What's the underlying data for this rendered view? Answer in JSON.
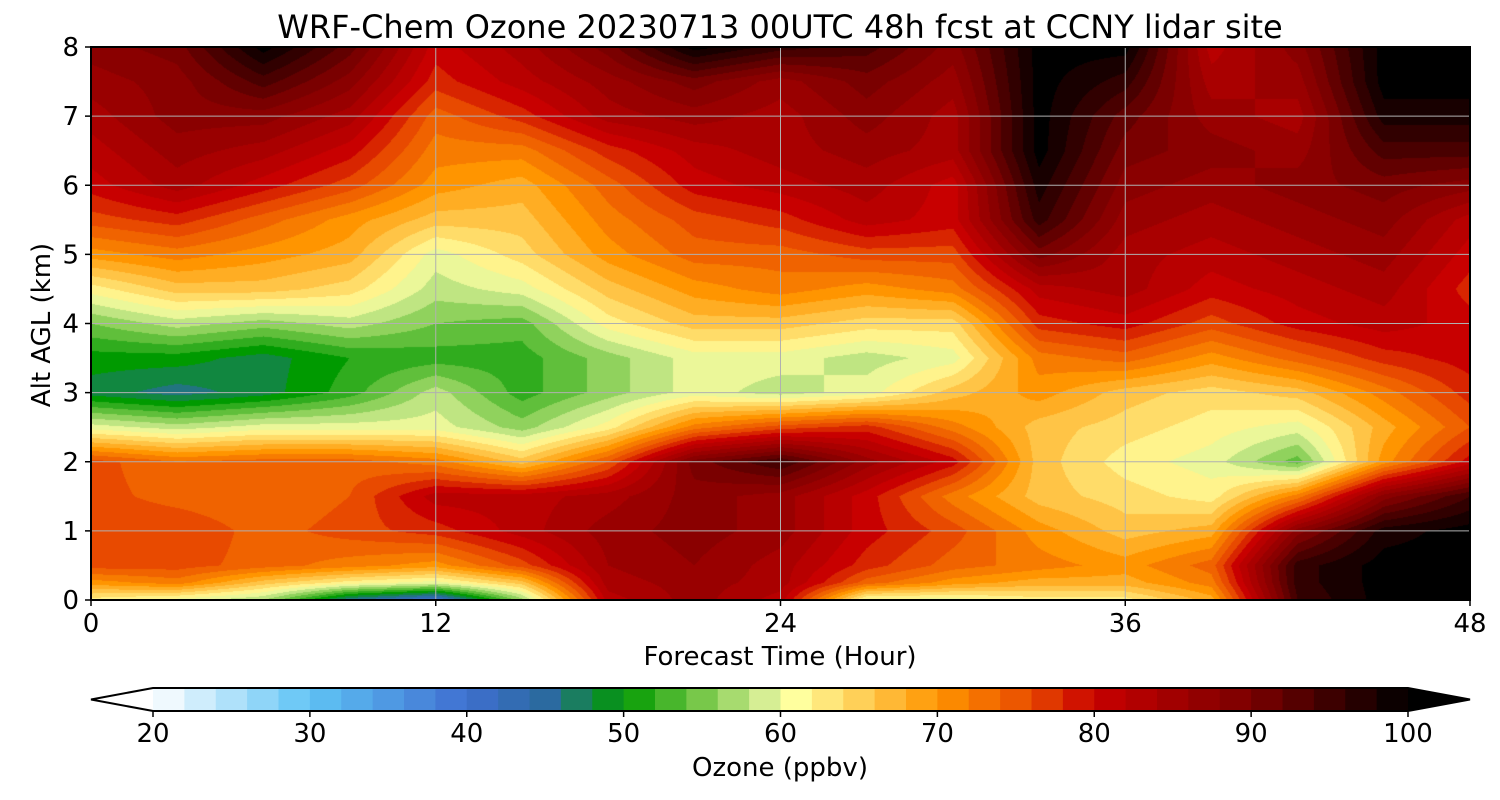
{
  "chart_data": {
    "type": "heatmap",
    "title": "WRF-Chem Ozone  20230713 00UTC 48h fcst at CCNY lidar site",
    "xlabel": "Forecast Time (Hour)",
    "ylabel": "Alt AGL (km)",
    "xlim": [
      0,
      48
    ],
    "ylim": [
      0,
      8
    ],
    "x_ticks": [
      0,
      12,
      24,
      36,
      48
    ],
    "y_ticks": [
      0,
      1,
      2,
      3,
      4,
      5,
      6,
      7,
      8
    ],
    "grid": true,
    "x": [
      0,
      3,
      6,
      9,
      12,
      15,
      18,
      21,
      24,
      27,
      30,
      33,
      36,
      39,
      42,
      45,
      48
    ],
    "y": [
      0,
      0.25,
      0.5,
      1,
      1.5,
      2,
      2.5,
      3,
      3.5,
      4,
      4.5,
      5,
      5.5,
      6,
      6.5,
      7,
      7.5,
      8
    ],
    "z": [
      [
        62,
        60,
        57,
        45,
        40,
        56,
        82,
        86,
        82,
        60,
        60,
        62,
        62,
        68,
        95,
        100,
        100
      ],
      [
        70,
        72,
        66,
        62,
        60,
        66,
        84,
        86,
        84,
        74,
        70,
        68,
        68,
        72,
        96,
        100,
        100
      ],
      [
        76,
        76,
        74,
        72,
        70,
        76,
        85,
        87,
        84,
        78,
        74,
        72,
        70,
        74,
        96,
        100,
        100
      ],
      [
        77,
        77,
        74,
        76,
        78,
        82,
        86,
        88,
        86,
        80,
        76,
        70,
        66,
        68,
        88,
        98,
        100
      ],
      [
        76,
        74,
        73,
        75,
        82,
        82,
        84,
        88,
        86,
        80,
        72,
        66,
        64,
        62,
        72,
        88,
        95
      ],
      [
        76,
        73,
        74,
        74,
        72,
        66,
        75,
        90,
        95,
        86,
        80,
        66,
        62,
        60,
        54,
        70,
        80
      ],
      [
        60,
        58,
        60,
        60,
        60,
        56,
        62,
        72,
        76,
        78,
        72,
        66,
        64,
        62,
        60,
        68,
        75
      ],
      [
        48,
        46,
        48,
        52,
        58,
        52,
        56,
        60,
        58,
        60,
        66,
        70,
        66,
        64,
        66,
        72,
        78
      ],
      [
        50,
        50,
        48,
        51,
        52,
        52,
        56,
        60,
        60,
        58,
        60,
        72,
        74,
        70,
        74,
        78,
        80
      ],
      [
        55,
        58,
        56,
        58,
        55,
        54,
        62,
        66,
        66,
        64,
        64,
        78,
        80,
        76,
        80,
        82,
        80
      ],
      [
        62,
        66,
        66,
        64,
        58,
        60,
        66,
        70,
        72,
        70,
        72,
        82,
        84,
        80,
        82,
        84,
        78
      ],
      [
        70,
        72,
        70,
        68,
        60,
        64,
        70,
        74,
        74,
        76,
        76,
        90,
        84,
        82,
        84,
        86,
        80
      ],
      [
        76,
        78,
        74,
        70,
        66,
        66,
        72,
        76,
        78,
        82,
        80,
        96,
        86,
        84,
        86,
        88,
        82
      ],
      [
        80,
        84,
        80,
        76,
        70,
        68,
        74,
        80,
        82,
        84,
        80,
        98,
        88,
        86,
        88,
        90,
        88
      ],
      [
        82,
        86,
        84,
        80,
        72,
        72,
        78,
        82,
        84,
        86,
        84,
        100,
        90,
        88,
        86,
        94,
        94
      ],
      [
        84,
        88,
        88,
        84,
        74,
        78,
        84,
        86,
        84,
        88,
        84,
        100,
        92,
        86,
        84,
        98,
        98
      ],
      [
        86,
        88,
        94,
        88,
        78,
        82,
        86,
        90,
        86,
        90,
        86,
        100,
        96,
        84,
        86,
        100,
        100
      ],
      [
        88,
        90,
        100,
        92,
        80,
        84,
        90,
        100,
        96,
        94,
        88,
        100,
        100,
        82,
        88,
        100,
        100
      ]
    ],
    "colorbar": {
      "label": "Ozone  (ppbv)",
      "min": 20,
      "max": 100,
      "ticks": [
        20,
        30,
        40,
        50,
        60,
        70,
        80,
        90,
        100
      ],
      "extend": "both",
      "stops": [
        {
          "v": 20,
          "c": "#ffffff"
        },
        {
          "v": 30,
          "c": "#5fc3f5"
        },
        {
          "v": 40,
          "c": "#3f6fd0"
        },
        {
          "v": 45,
          "c": "#2b6aa0"
        },
        {
          "v": 50,
          "c": "#009a00"
        },
        {
          "v": 55,
          "c": "#78c84a"
        },
        {
          "v": 59,
          "c": "#d6ee94"
        },
        {
          "v": 61,
          "c": "#ffff9e"
        },
        {
          "v": 70,
          "c": "#ff9500"
        },
        {
          "v": 76,
          "c": "#e84a00"
        },
        {
          "v": 80,
          "c": "#c80000"
        },
        {
          "v": 90,
          "c": "#7a0000"
        },
        {
          "v": 100,
          "c": "#000000"
        }
      ]
    }
  }
}
